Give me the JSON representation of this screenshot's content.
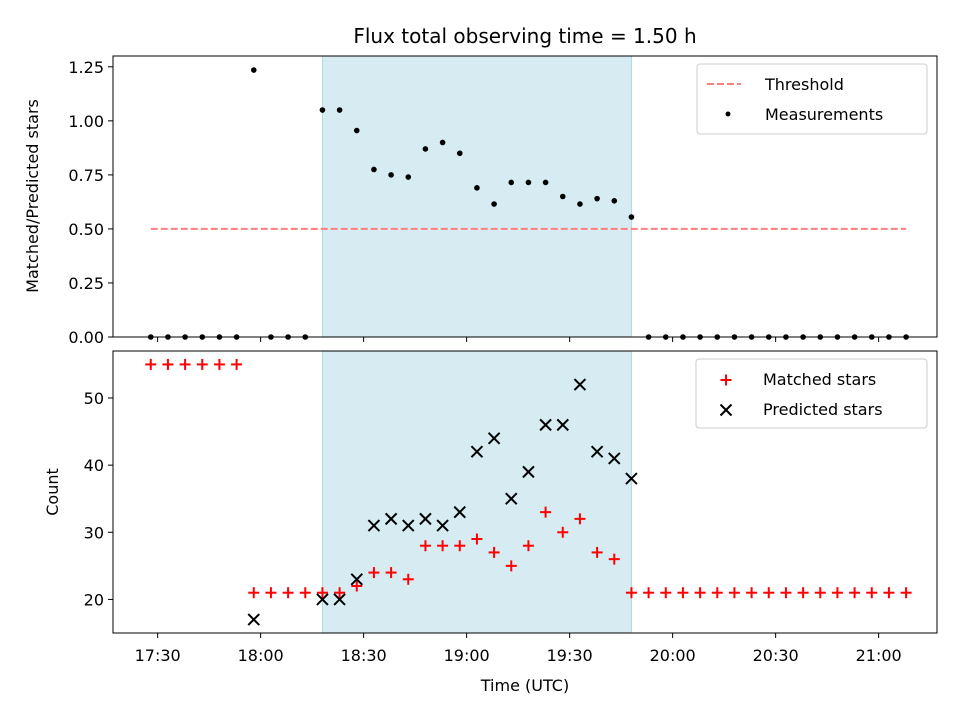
{
  "chart_data": [
    {
      "type": "scatter",
      "title": "Flux total observing time = 1.50 h",
      "xlabel": "",
      "ylabel": "Matched/Predicted stars",
      "ylim": [
        0,
        1.3
      ],
      "yticks": [
        0.0,
        0.25,
        0.5,
        0.75,
        1.0,
        1.25
      ],
      "ytick_labels": [
        "0.00",
        "0.25",
        "0.50",
        "0.75",
        "1.00",
        "1.25"
      ],
      "shaded_interval": {
        "start": "18:18",
        "end": "19:48",
        "color": "#add8e6"
      },
      "threshold": {
        "label": "Threshold",
        "value": 0.5,
        "from": "17:28",
        "to": "21:08",
        "color": "#ff7f7f"
      },
      "series": [
        {
          "name": "Measurements",
          "color": "#000000",
          "times": [
            "17:28",
            "17:33",
            "17:38",
            "17:43",
            "17:48",
            "17:53",
            "17:58",
            "18:03",
            "18:08",
            "18:13",
            "18:18",
            "18:23",
            "18:28",
            "18:33",
            "18:38",
            "18:43",
            "18:48",
            "18:53",
            "18:58",
            "19:03",
            "19:08",
            "19:13",
            "19:18",
            "19:23",
            "19:28",
            "19:33",
            "19:38",
            "19:43",
            "19:48",
            "19:53",
            "19:58",
            "20:03",
            "20:08",
            "20:13",
            "20:18",
            "20:23",
            "20:28",
            "20:33",
            "20:38",
            "20:43",
            "20:48",
            "20:53",
            "20:58",
            "21:03",
            "21:08"
          ],
          "values": [
            0,
            0,
            0,
            0,
            0,
            0,
            1.235,
            0,
            0,
            0,
            1.05,
            1.05,
            0.955,
            0.775,
            0.75,
            0.74,
            0.87,
            0.9,
            0.85,
            0.69,
            0.615,
            0.715,
            0.715,
            0.715,
            0.65,
            0.615,
            0.64,
            0.63,
            0.555,
            0,
            0,
            0,
            0,
            0,
            0,
            0,
            0,
            0,
            0,
            0,
            0,
            0,
            0,
            0,
            0
          ]
        }
      ],
      "legend": {
        "position": "top-right",
        "entries": [
          "Threshold",
          "Measurements"
        ]
      }
    },
    {
      "type": "scatter",
      "title": "",
      "xlabel": "Time (UTC)",
      "ylabel": "Count",
      "ylim": [
        15,
        57
      ],
      "yticks": [
        20,
        30,
        40,
        50
      ],
      "ytick_labels": [
        "20",
        "30",
        "40",
        "50"
      ],
      "xlim": [
        "17:17",
        "21:17"
      ],
      "xticks": [
        "17:30",
        "18:00",
        "18:30",
        "19:00",
        "19:30",
        "20:00",
        "20:30",
        "21:00"
      ],
      "shaded_interval": {
        "start": "18:18",
        "end": "19:48",
        "color": "#add8e6"
      },
      "series": [
        {
          "name": "Matched stars",
          "marker": "+",
          "color": "#ff0000",
          "times": [
            "17:28",
            "17:33",
            "17:38",
            "17:43",
            "17:48",
            "17:53",
            "17:58",
            "18:03",
            "18:08",
            "18:13",
            "18:18",
            "18:23",
            "18:28",
            "18:33",
            "18:38",
            "18:43",
            "18:48",
            "18:53",
            "18:58",
            "19:03",
            "19:08",
            "19:13",
            "19:18",
            "19:23",
            "19:28",
            "19:33",
            "19:38",
            "19:43",
            "19:48",
            "19:53",
            "19:58",
            "20:03",
            "20:08",
            "20:13",
            "20:18",
            "20:23",
            "20:28",
            "20:33",
            "20:38",
            "20:43",
            "20:48",
            "20:53",
            "20:58",
            "21:03",
            "21:08"
          ],
          "values": [
            55,
            55,
            55,
            55,
            55,
            55,
            21,
            21,
            21,
            21,
            21,
            21,
            22,
            24,
            24,
            23,
            28,
            28,
            28,
            29,
            27,
            25,
            28,
            33,
            30,
            32,
            27,
            26,
            21,
            21,
            21,
            21,
            21,
            21,
            21,
            21,
            21,
            21,
            21,
            21,
            21,
            21,
            21,
            21,
            21
          ]
        },
        {
          "name": "Predicted stars",
          "marker": "x",
          "color": "#000000",
          "times": [
            "17:58",
            "18:18",
            "18:23",
            "18:28",
            "18:33",
            "18:38",
            "18:43",
            "18:48",
            "18:53",
            "18:58",
            "19:03",
            "19:08",
            "19:13",
            "19:18",
            "19:23",
            "19:28",
            "19:33",
            "19:38",
            "19:43",
            "19:48"
          ],
          "values": [
            17,
            20,
            20,
            23,
            31,
            32,
            31,
            32,
            31,
            33,
            42,
            44,
            35,
            39,
            46,
            46,
            52,
            42,
            41,
            38
          ]
        }
      ],
      "legend": {
        "position": "top-right",
        "entries": [
          "Matched stars",
          "Predicted stars"
        ]
      }
    }
  ]
}
